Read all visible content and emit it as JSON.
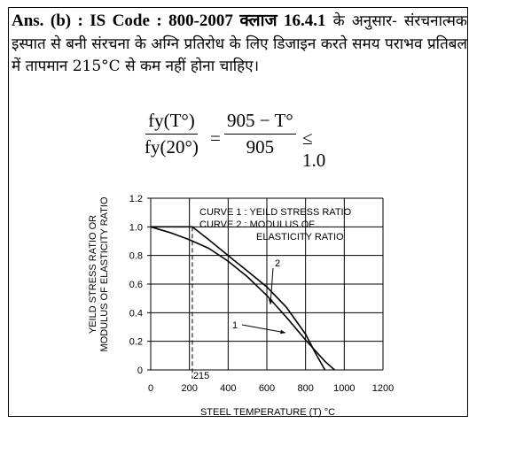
{
  "answer": {
    "lead": "Ans. (b) : IS Code : 800-2007 क्लाज 16.4.1",
    "text": "के अनुसार- संरचनात्मक इस्पात से बनी संरचना के अग्नि प्रतिरोध के लिए डिजाइन करते समय पराभव प्रतिबल में तापमान 215°C से कम नहीं होना चाहिए।"
  },
  "formula": {
    "lhs_num": "fy(T°)",
    "lhs_den": "fy(20°)",
    "equals": "=",
    "rhs_num": "905 − T°",
    "rhs_den": "905",
    "relation": "≤ 1.0"
  },
  "chart_data": {
    "type": "line",
    "xlabel": "STEEL TEMPERATURE (T) °C",
    "ylabel_line1": "YEILD STRESS RATIO OR",
    "ylabel_line2": "MODULUS OF ELASTICITY RATIO",
    "xlim": [
      0,
      1200
    ],
    "ylim": [
      0,
      1.2
    ],
    "x_ticks": [
      0,
      200,
      400,
      600,
      800,
      1000,
      1200
    ],
    "x_tick_labels": [
      "0",
      "200",
      "400",
      "600",
      "800",
      "1000",
      "1200"
    ],
    "y_ticks": [
      0,
      0.2,
      0.4,
      0.6,
      0.8,
      1.0,
      1.2
    ],
    "y_tick_labels": [
      "0",
      "0.2",
      "0.4",
      "0.6",
      "0.8",
      "1.0",
      "1.2"
    ],
    "grid": true,
    "legend": [
      "CURVE 1 : YEILD STRESS RATIO",
      "CURVE 2 : MODULUS OF",
      "ELASTICITY RATIO"
    ],
    "marker": {
      "x": 215,
      "label": "215"
    },
    "series": [
      {
        "label": "1",
        "x": [
          0,
          215,
          300,
          400,
          500,
          600,
          700,
          800,
          850,
          900
        ],
        "y": [
          1.0,
          1.0,
          0.91,
          0.8,
          0.69,
          0.58,
          0.44,
          0.25,
          0.12,
          0.0
        ]
      },
      {
        "label": "2",
        "x": [
          0,
          100,
          200,
          300,
          400,
          500,
          600,
          700,
          800,
          900,
          950
        ],
        "y": [
          1.0,
          0.96,
          0.91,
          0.85,
          0.76,
          0.65,
          0.52,
          0.37,
          0.21,
          0.06,
          0.0
        ]
      }
    ]
  }
}
